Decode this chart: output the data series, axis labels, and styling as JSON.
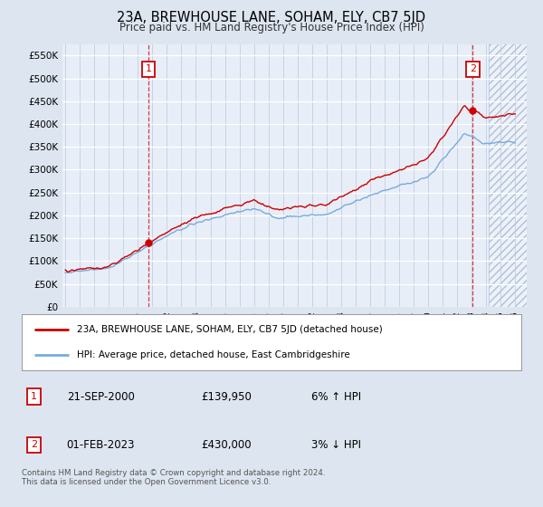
{
  "title": "23A, BREWHOUSE LANE, SOHAM, ELY, CB7 5JD",
  "subtitle": "Price paid vs. HM Land Registry's House Price Index (HPI)",
  "ylim": [
    0,
    575000
  ],
  "yticks": [
    0,
    50000,
    100000,
    150000,
    200000,
    250000,
    300000,
    350000,
    400000,
    450000,
    500000,
    550000
  ],
  "ytick_labels": [
    "£0",
    "£50K",
    "£100K",
    "£150K",
    "£200K",
    "£250K",
    "£300K",
    "£350K",
    "£400K",
    "£450K",
    "£500K",
    "£550K"
  ],
  "x_start_year": 1995,
  "x_end_year": 2026,
  "hpi_color": "#7aaadd",
  "price_color": "#cc0000",
  "sale1_year": 2000.72,
  "sale1_price": 139950,
  "sale2_year": 2023.08,
  "sale2_price": 430000,
  "legend_line1": "23A, BREWHOUSE LANE, SOHAM, ELY, CB7 5JD (detached house)",
  "legend_line2": "HPI: Average price, detached house, East Cambridgeshire",
  "note1_label": "1",
  "note1_date": "21-SEP-2000",
  "note1_price": "£139,950",
  "note1_hpi": "6% ↑ HPI",
  "note2_label": "2",
  "note2_date": "01-FEB-2023",
  "note2_price": "£430,000",
  "note2_hpi": "3% ↓ HPI",
  "footer": "Contains HM Land Registry data © Crown copyright and database right 2024.\nThis data is licensed under the Open Government Licence v3.0.",
  "bg_color": "#dde5f0",
  "plot_bg_color": "#e8eef8",
  "hatch_color": "#b0bfd8",
  "box_color": "#cc0000"
}
